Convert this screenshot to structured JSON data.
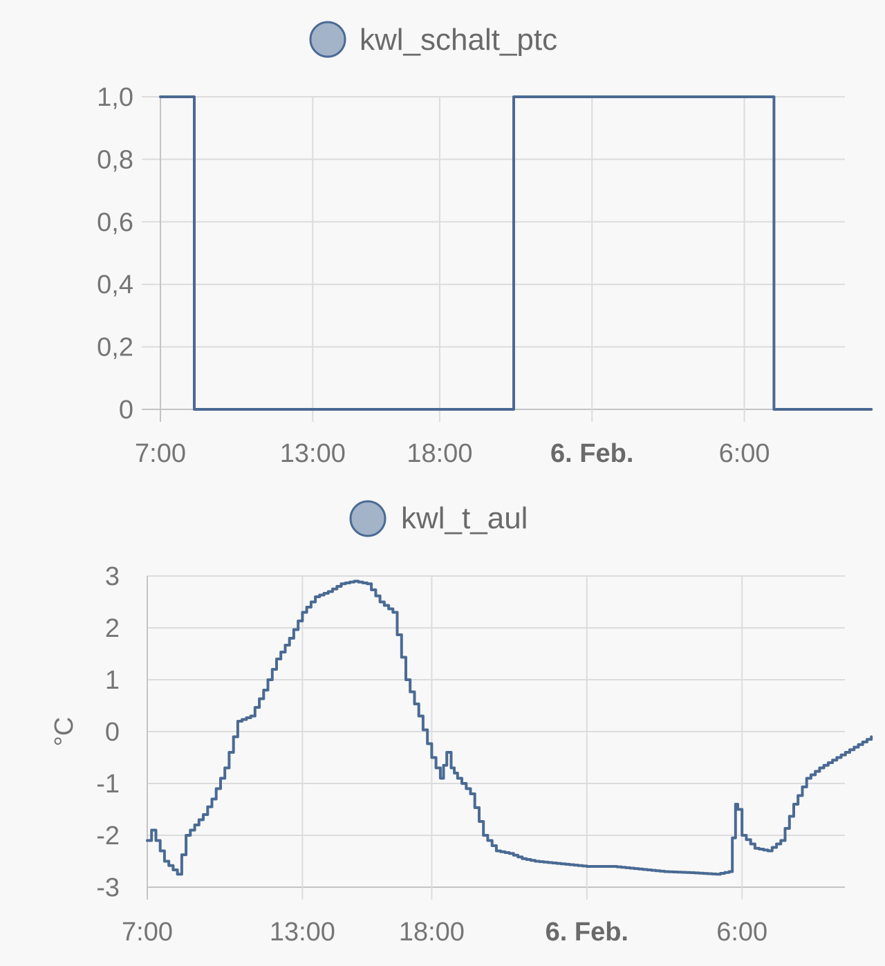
{
  "chart_data": [
    {
      "type": "line",
      "step": true,
      "legend_position": "top-center",
      "series": [
        {
          "name": "kwl_schalt_ptc",
          "color": "#4a6a93",
          "legend_fill": "#a3b3c8",
          "x": [
            "7:00",
            "8:20",
            "8:20",
            "20:55",
            "20:55",
            "7:10",
            "7:10",
            "11:00"
          ],
          "values": [
            1,
            1,
            0,
            0,
            1,
            1,
            0,
            0
          ]
        }
      ],
      "x_ticks": [
        "7:00",
        "13:00",
        "18:00",
        "6. Feb.",
        "6:00"
      ],
      "x_ticks_bold": [
        false,
        false,
        false,
        true,
        false
      ],
      "y_ticks": [
        "1,0",
        "0,8",
        "0,6",
        "0,4",
        "0,2",
        "0"
      ],
      "ylim": [
        0,
        1
      ],
      "ylabel": "",
      "grid": true
    },
    {
      "type": "line",
      "step": true,
      "legend_position": "top-center",
      "series": [
        {
          "name": "kwl_t_aul",
          "color": "#4a6a93",
          "legend_fill": "#a3b3c8",
          "x": [
            "7:00",
            "7:10",
            "7:20",
            "7:40",
            "8:10",
            "8:30",
            "8:50",
            "9:10",
            "9:30",
            "10:00",
            "10:30",
            "11:00",
            "11:30",
            "12:00",
            "12:30",
            "13:00",
            "13:30",
            "14:00",
            "14:30",
            "15:00",
            "15:30",
            "16:00",
            "16:30",
            "17:00",
            "17:30",
            "18:00",
            "18:20",
            "18:35",
            "18:45",
            "19:00",
            "19:30",
            "20:00",
            "20:30",
            "21:00",
            "21:30",
            "22:00",
            "23:00",
            "0:00",
            "1:00",
            "2:00",
            "3:00",
            "4:00",
            "5:00",
            "5:30",
            "5:45",
            "5:50",
            "6:00",
            "6:30",
            "7:00",
            "7:30",
            "8:00",
            "8:30",
            "9:00",
            "10:00",
            "11:00"
          ],
          "values": [
            -2.1,
            -1.9,
            -2.1,
            -2.5,
            -2.75,
            -2.0,
            -1.8,
            -1.6,
            -1.3,
            -0.7,
            0.2,
            0.3,
            0.8,
            1.4,
            1.8,
            2.3,
            2.6,
            2.7,
            2.85,
            2.9,
            2.85,
            2.5,
            2.3,
            1.0,
            0.3,
            -0.5,
            -0.9,
            -0.4,
            -0.7,
            -0.9,
            -1.2,
            -2.0,
            -2.3,
            -2.35,
            -2.45,
            -2.5,
            -2.55,
            -2.6,
            -2.6,
            -2.65,
            -2.7,
            -2.72,
            -2.75,
            -2.7,
            -1.4,
            -1.5,
            -2.0,
            -2.25,
            -2.3,
            -2.1,
            -1.4,
            -0.9,
            -0.7,
            -0.4,
            -0.1
          ]
        }
      ],
      "x_ticks": [
        "7:00",
        "13:00",
        "18:00",
        "6. Feb.",
        "6:00"
      ],
      "x_ticks_bold": [
        false,
        false,
        false,
        true,
        false
      ],
      "y_ticks": [
        "3",
        "2",
        "1",
        "0",
        "-1",
        "-2",
        "-3"
      ],
      "ylim": [
        -3,
        3
      ],
      "ylabel": "°C",
      "grid": true
    }
  ]
}
